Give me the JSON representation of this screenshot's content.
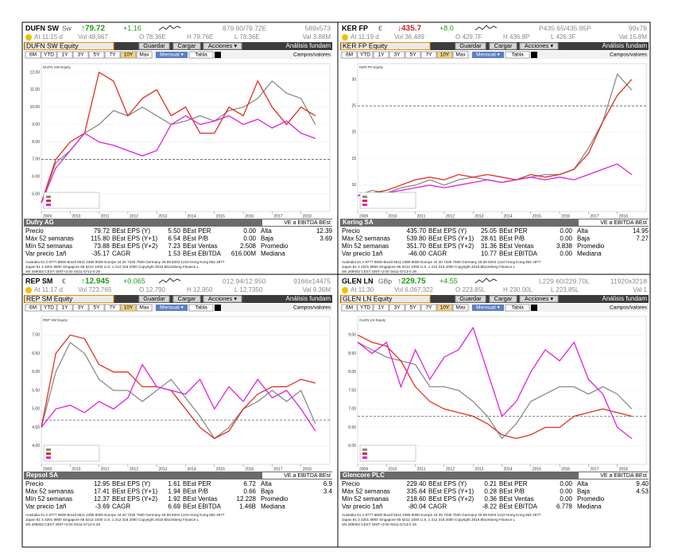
{
  "toolbar": {
    "save": "Guardar",
    "load": "Cargar",
    "actions": "Acciones ▾",
    "analysis": "Análisis fundam",
    "tabs": [
      "6M",
      "YTD",
      "1Y",
      "3Y",
      "5Y",
      "7Y",
      "10Y",
      "Max"
    ],
    "period": "Mensual ▾",
    "table": "Tabla",
    "fields": "Campos/valores",
    "metric": "VE a EBITDA BEst"
  },
  "footer": [
    "Australia 61 2 9777 8600 Brazil 5511 2395 9000 Europe 44 20 7330 7500 Germany 49 69 9204 1210 Hong Kong 852 2977",
    "Japan 81 3 3201 8900      Singapore 65 6212 1000      U.S. 1 212 318 2000      Copyright 2018 Bloomberg Finance L",
    "SN 269003 CEST GMT+2:00 G611-5713-0 29"
  ],
  "panels": [
    {
      "header": {
        "ticker": "DUFN SW",
        "currency": "Sw",
        "price": "↑79.72",
        "price_color": "#1a9a1a",
        "change": "+1.16",
        "bid_ask": "879.60/79.72E",
        "size": "589x573",
        "time": "At 11:15 d",
        "volume": "Vol 48,967",
        "open": "O 78.36E",
        "high": "H 79.76E",
        "low": "L 78.36E",
        "value": "Val 3.88M"
      },
      "equity": "DUFN SW Equity",
      "name": "Dufry AG",
      "chart": {
        "type": "line",
        "xlim": [
          2009,
          2019
        ],
        "xticks": [
          2009,
          2010,
          2011,
          2012,
          2013,
          2014,
          2015,
          2016,
          2017,
          2018
        ],
        "x": [
          2009,
          2009.5,
          2010,
          2010.5,
          2011,
          2011.5,
          2012,
          2012.5,
          2013,
          2013.5,
          2014,
          2014.5,
          2015,
          2015.5,
          2016,
          2016.5,
          2017,
          2017.5,
          2018,
          2018.5
        ],
        "ylim": [
          4,
          12.5
        ],
        "yticks": [
          {
            "value": 5,
            "label": "5.00"
          },
          {
            "value": 6,
            "label": "6.00"
          },
          {
            "value": 7,
            "label": "7.00"
          },
          {
            "value": 8,
            "label": "8.00"
          },
          {
            "value": 9,
            "label": "9.00"
          },
          {
            "value": 10,
            "label": "10.00"
          },
          {
            "value": 11,
            "label": "11.00"
          },
          {
            "value": 12,
            "label": "12.00"
          }
        ],
        "reference": 7,
        "series": [
          {
            "color": "#8a8a8a",
            "values": [
              4.5,
              6.8,
              7.5,
              8.5,
              9,
              9.8,
              9.5,
              10,
              9.5,
              9,
              9.2,
              9.5,
              9.2,
              9.8,
              10,
              10.5,
              11.5,
              10.8,
              10.5,
              9
            ]
          },
          {
            "color": "#e03020",
            "values": [
              4.5,
              7,
              8,
              8.5,
              12,
              11.5,
              9.5,
              10.5,
              11,
              9.5,
              10,
              8.5,
              8.5,
              10,
              9.5,
              11.5,
              10,
              9,
              10,
              9.5
            ]
          },
          {
            "color": "#e020e0",
            "values": [
              4.5,
              6.5,
              7.5,
              8.5,
              8,
              7.8,
              7.5,
              7.2,
              7.5,
              9,
              9.5,
              9,
              9.2,
              9.5,
              9,
              9.3,
              8.8,
              9.2,
              8.5,
              8.2
            ]
          }
        ]
      },
      "stats": [
        [
          "Precio",
          "79.72",
          "BEst EPS (Y)",
          "5.50",
          "BEst PER",
          "0.00",
          "Alta",
          "12.39"
        ],
        [
          "Máx 52 semanas",
          "115.80",
          "BEst EPS (Y+1)",
          "6.54",
          "BEst P/B",
          "0.00",
          "Baja",
          "3.69"
        ],
        [
          "Mín 52 semanas",
          "73.88",
          "BEst EPS (Y+2)",
          "7.23",
          "BEst Ventas",
          "2.508",
          "Promedio"
        ],
        [
          "Var precio 1añ",
          "-35.17",
          "CAGR",
          "1.53",
          "BEst EBITDA",
          "616.00M",
          "Mediana"
        ]
      ]
    },
    {
      "header": {
        "ticker": "KER FP",
        "currency": "€",
        "price": "↓435.7",
        "price_color": "#d02020",
        "change": "+8.0",
        "bid_ask": "P435.65/435.85P",
        "size": "99x78",
        "time": "At 11:19 d",
        "volume": "Vol 36,489",
        "open": "O 429.7F",
        "high": "H 436.8P",
        "low": "L 426.3F",
        "value": "Val 15.8M"
      },
      "equity": "KER FP Equity",
      "name": "Kering SA",
      "chart": {
        "type": "line",
        "xlim": [
          2009,
          2019
        ],
        "xticks": [
          2009,
          2010,
          2011,
          2012,
          2013,
          2014,
          2015,
          2016,
          2017,
          2018
        ],
        "x": [
          2009,
          2009.5,
          2010,
          2010.5,
          2011,
          2011.5,
          2012,
          2012.5,
          2013,
          2013.5,
          2014,
          2014.5,
          2015,
          2015.5,
          2016,
          2016.5,
          2017,
          2017.5,
          2018,
          2018.5
        ],
        "ylim": [
          5,
          33
        ],
        "yticks": [
          10,
          15,
          20,
          25,
          30
        ],
        "reference": 25,
        "series": [
          {
            "color": "#8a8a8a",
            "values": [
              8,
              9,
              8.5,
              9.5,
              10,
              11,
              10,
              11,
              11.5,
              11,
              10.5,
              11,
              11.5,
              12,
              12,
              13,
              17,
              22,
              31,
              28
            ]
          },
          {
            "color": "#e03020",
            "values": [
              8,
              8.5,
              9,
              10,
              11,
              11.5,
              11,
              12,
              11.5,
              12,
              11.5,
              11,
              12,
              11.5,
              12,
              13,
              16,
              22,
              27,
              30
            ]
          },
          {
            "color": "#e020e0",
            "values": [
              8,
              8.2,
              8.5,
              9,
              9.5,
              10,
              9.5,
              10,
              10.5,
              11,
              10.5,
              11,
              11.5,
              11,
              11.5,
              11,
              12,
              13,
              14,
              12
            ]
          }
        ]
      },
      "stats": [
        [
          "Precio",
          "435.70",
          "BEst EPS (Y)",
          "25.05",
          "BEst PER",
          "0.00",
          "Alta",
          "14.95"
        ],
        [
          "Máx 52 semanas",
          "539.80",
          "BEst EPS (Y+1)",
          "28.61",
          "BEst P/B",
          "0.00",
          "Baja",
          "7.27"
        ],
        [
          "Mín 52 semanas",
          "351.70",
          "BEst EPS (Y+2)",
          "31.36",
          "BEst Ventas",
          "3.838",
          "Promedio"
        ],
        [
          "Var precio 1añ",
          "-46.00",
          "CAGR",
          "10.77",
          "BEst EBITDA",
          "0.00",
          "Mediana"
        ]
      ]
    },
    {
      "header": {
        "ticker": "REP SM",
        "currency": "€",
        "price": "↑12.945",
        "price_color": "#1a9a1a",
        "change": "+0.065",
        "bid_ask": "012.94/12.950",
        "size": "9166x14475",
        "time": "At 11:17 d",
        "volume": "Vol 723,765",
        "open": "O 12.790",
        "high": "H 12.950",
        "low": "L 12.7350",
        "value": "Val 9.36M"
      },
      "equity": "REP SM Equity",
      "name": "Repsol SA",
      "chart": {
        "type": "line",
        "xlim": [
          2009,
          2019
        ],
        "xticks": [
          2009,
          2010,
          2011,
          2012,
          2013,
          2014,
          2015,
          2016,
          2017,
          2018
        ],
        "x": [
          2009,
          2009.5,
          2010,
          2010.5,
          2011,
          2011.5,
          2012,
          2012.5,
          2013,
          2013.5,
          2014,
          2014.5,
          2015,
          2015.5,
          2016,
          2016.5,
          2017,
          2017.5,
          2018,
          2018.5
        ],
        "ylim": [
          3.5,
          7.5
        ],
        "yticks": [
          {
            "value": 4,
            "label": "4.00"
          },
          {
            "value": 4.5,
            "label": "4.50"
          },
          {
            "value": 5,
            "label": "5.00"
          },
          {
            "value": 5.5,
            "label": "5.50"
          },
          {
            "value": 6,
            "label": "6.00"
          },
          {
            "value": 6.5,
            "label": "6.50"
          },
          {
            "value": 7,
            "label": "7.00"
          }
        ],
        "reference": 4.7,
        "series": [
          {
            "color": "#8a8a8a",
            "values": [
              4.5,
              6,
              6.8,
              6.5,
              5.8,
              5.5,
              5.5,
              5.2,
              5.5,
              5.8,
              5.3,
              4.8,
              4.2,
              4.5,
              5,
              5.2,
              5.5,
              5.2,
              5.5,
              4.6
            ]
          },
          {
            "color": "#e03020",
            "values": [
              4.5,
              6.5,
              7,
              6.9,
              6.2,
              6,
              6,
              5.6,
              5.6,
              5.5,
              5,
              4.5,
              4.2,
              4.4,
              5,
              5.4,
              5.6,
              5.6,
              5.8,
              5.7
            ]
          },
          {
            "color": "#e020e0",
            "values": [
              4.5,
              5,
              5.1,
              4.9,
              5.2,
              5,
              5.3,
              6.2,
              5.6,
              5.5,
              5.4,
              5.8,
              5,
              5.6,
              5.2,
              5.8,
              5.3,
              5.5,
              5,
              4.4
            ]
          }
        ]
      },
      "stats": [
        [
          "Precio",
          "12.95",
          "BEst EPS (Y)",
          "1.61",
          "BEst PER",
          "6.72",
          "Alta",
          "6.9"
        ],
        [
          "Máx 52 semanas",
          "17.41",
          "BEst EPS (Y+1)",
          "1.94",
          "BEst P/B",
          "0.66",
          "Baja",
          "3.4"
        ],
        [
          "Mín 52 semanas",
          "12.37",
          "BEst EPS (Y+2)",
          "1.92",
          "BEst Ventas",
          "12.228",
          "Promedio"
        ],
        [
          "Var precio 1añ",
          "-3.69",
          "CAGR",
          "6.69",
          "BEst EBITDA",
          "1.46B",
          "Mediana"
        ]
      ]
    },
    {
      "header": {
        "ticker": "GLEN LN",
        "currency": "GBp",
        "price": "↑229.75",
        "price_color": "#1a9a1a",
        "change": "+4.55",
        "bid_ask": "L229.60/229.70L",
        "size": "11920x3218",
        "time": "At 11:30",
        "volume": "Vol 6,067,322",
        "open": "O 223.85L",
        "high": "H 230.00L",
        "low": "L 223.85L",
        "value": "Val 1"
      },
      "equity": "GLEN LN Equity",
      "name": "Glencore PLC",
      "chart": {
        "type": "line",
        "xlim": [
          2009,
          2019
        ],
        "xticks": [
          2009,
          2010,
          2011,
          2012,
          2013,
          2014,
          2015,
          2016,
          2017,
          2018
        ],
        "x": [
          2009,
          2009.5,
          2010,
          2010.5,
          2011,
          2011.5,
          2012,
          2012.5,
          2013,
          2013.5,
          2014,
          2014.5,
          2015,
          2015.5,
          2016,
          2016.5,
          2017,
          2017.5,
          2018,
          2018.5
        ],
        "ylim": [
          5.5,
          9.5
        ],
        "yticks": [
          {
            "value": 6,
            "label": "6.00"
          },
          {
            "value": 6.5,
            "label": "6.50"
          },
          {
            "value": 7,
            "label": "7.00"
          },
          {
            "value": 7.5,
            "label": "7.50"
          },
          {
            "value": 8,
            "label": "8.00"
          },
          {
            "value": 8.5,
            "label": "8.50"
          },
          {
            "value": 9,
            "label": "9.00"
          }
        ],
        "reference": 6.8,
        "series": [
          {
            "color": "#8a8a8a",
            "values": [
              8.8,
              8.6,
              8.4,
              8.3,
              8.2,
              7.6,
              7.6,
              7.5,
              7.2,
              6.8,
              6.2,
              6.6,
              7.2,
              7.4,
              7.6,
              7.6,
              7.4,
              7.6,
              7.4,
              7.0
            ]
          },
          {
            "color": "#e03020",
            "values": [
              9,
              8.8,
              8.7,
              8.3,
              7.6,
              7.2,
              7.0,
              6.9,
              6.8,
              6.6,
              6.3,
              6.2,
              6.3,
              6.5,
              6.5,
              6.8,
              6.9,
              7.0,
              6.9,
              6.8
            ]
          },
          {
            "color": "#e020e0",
            "values": [
              8.8,
              8.5,
              8.8,
              7.6,
              8.6,
              7.8,
              8.4,
              8.6,
              9.2,
              8,
              6.8,
              7.2,
              8,
              8.6,
              8.3,
              8.8,
              7.8,
              7.4,
              6.5,
              6.2
            ]
          }
        ]
      },
      "stats": [
        [
          "Precio",
          "229.40",
          "BEst EPS (Y)",
          "0.21",
          "BEst PER",
          "0.00",
          "Alta",
          "9.40"
        ],
        [
          "Máx 52 semanas",
          "335.64",
          "BEst EPS (Y+1)",
          "0.28",
          "BEst P/B",
          "0.00",
          "Baja",
          "4.53"
        ],
        [
          "Mín 52 semanas",
          "218.60",
          "BEst EPS (Y+2)",
          "0.36",
          "BEst Ventas",
          "0.00",
          "Promedio"
        ],
        [
          "Var precio 1añ",
          "-80.04",
          "CAGR",
          "-8.22",
          "BEst EBITDA",
          "6.778",
          "Mediana"
        ]
      ]
    }
  ]
}
